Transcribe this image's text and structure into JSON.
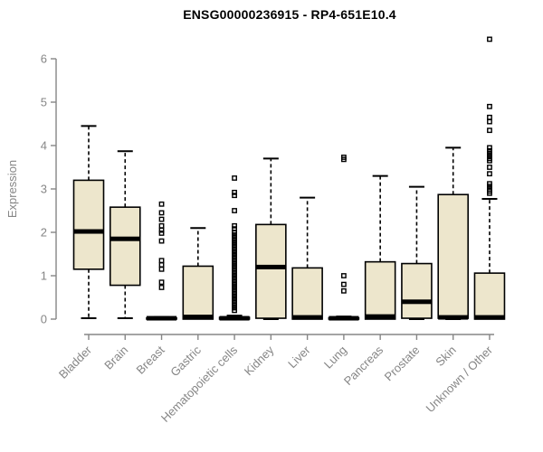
{
  "title": "ENSG00000236915 - RP4-651E10.4",
  "colors": {
    "box_fill": "#EDE6CC",
    "box_stroke": "#000000",
    "median": "#000000",
    "whisker": "#000000",
    "outlier": "#000000",
    "axis": "#868686",
    "axis_text": "#868686",
    "title_text": "#000000",
    "background": "#FFFFFF"
  },
  "chart_data": {
    "type": "boxplot",
    "title": "ENSG00000236915 - RP4-651E10.4",
    "xlabel": "",
    "ylabel": "Expression",
    "ylim": [
      0,
      6
    ],
    "yticks": [
      0,
      1,
      2,
      3,
      4,
      5,
      6
    ],
    "grid": false,
    "legend": false,
    "categories": [
      "Bladder",
      "Brain",
      "Breast",
      "Gastric",
      "Hematopoietic cells",
      "Kidney",
      "Liver",
      "Lung",
      "Pancreas",
      "Prostate",
      "Skin",
      "Unknown / Other"
    ],
    "series": [
      {
        "name": "Bladder",
        "whisker_low": 0.02,
        "q1": 1.15,
        "median": 2.02,
        "q3": 3.2,
        "whisker_high": 4.45,
        "outliers": []
      },
      {
        "name": "Brain",
        "whisker_low": 0.02,
        "q1": 0.78,
        "median": 1.85,
        "q3": 2.58,
        "whisker_high": 3.87,
        "outliers": []
      },
      {
        "name": "Breast",
        "whisker_low": 0.0,
        "q1": 0.0,
        "median": 0.02,
        "q3": 0.03,
        "whisker_high": 0.05,
        "outliers": [
          2.65,
          2.45,
          2.3,
          2.15,
          2.05,
          1.98,
          1.8,
          1.35,
          1.25,
          1.15,
          0.85,
          0.73
        ]
      },
      {
        "name": "Gastric",
        "whisker_low": 0.0,
        "q1": 0.0,
        "median": 0.05,
        "q3": 1.22,
        "whisker_high": 2.1,
        "outliers": []
      },
      {
        "name": "Hematopoietic cells",
        "whisker_low": 0.0,
        "q1": 0.0,
        "median": 0.02,
        "q3": 0.04,
        "whisker_high": 0.08,
        "outliers": [
          0.2,
          0.26,
          0.32,
          0.38,
          0.44,
          0.5,
          0.56,
          0.62,
          0.68,
          0.74,
          0.8,
          0.86,
          0.92,
          0.98,
          1.04,
          1.1,
          1.16,
          1.22,
          1.28,
          1.34,
          1.4,
          1.46,
          1.52,
          1.58,
          1.64,
          1.7,
          1.76,
          1.82,
          1.88,
          1.94,
          2.0,
          2.08,
          2.15,
          2.5,
          2.85,
          2.92,
          3.25
        ]
      },
      {
        "name": "Kidney",
        "whisker_low": 0.0,
        "q1": 0.02,
        "median": 1.2,
        "q3": 2.18,
        "whisker_high": 3.7,
        "outliers": []
      },
      {
        "name": "Liver",
        "whisker_low": 0.0,
        "q1": 0.0,
        "median": 0.04,
        "q3": 1.18,
        "whisker_high": 2.8,
        "outliers": []
      },
      {
        "name": "Lung",
        "whisker_low": 0.0,
        "q1": 0.0,
        "median": 0.02,
        "q3": 0.03,
        "whisker_high": 0.06,
        "outliers": [
          3.73,
          3.68,
          1.0,
          0.8,
          0.65
        ]
      },
      {
        "name": "Pancreas",
        "whisker_low": 0.0,
        "q1": 0.0,
        "median": 0.06,
        "q3": 1.32,
        "whisker_high": 3.3,
        "outliers": []
      },
      {
        "name": "Prostate",
        "whisker_low": 0.0,
        "q1": 0.02,
        "median": 0.4,
        "q3": 1.28,
        "whisker_high": 3.05,
        "outliers": []
      },
      {
        "name": "Skin",
        "whisker_low": 0.0,
        "q1": 0.02,
        "median": 0.04,
        "q3": 2.87,
        "whisker_high": 3.95,
        "outliers": []
      },
      {
        "name": "Unknown / Other",
        "whisker_low": 0.0,
        "q1": 0.0,
        "median": 0.04,
        "q3": 1.06,
        "whisker_high": 2.77,
        "outliers": [
          6.45,
          4.9,
          4.65,
          4.55,
          4.35,
          3.95,
          3.88,
          3.82,
          3.76,
          3.7,
          3.65,
          3.5,
          3.35,
          3.12,
          3.06,
          3.0,
          2.95,
          2.9
        ]
      }
    ]
  }
}
